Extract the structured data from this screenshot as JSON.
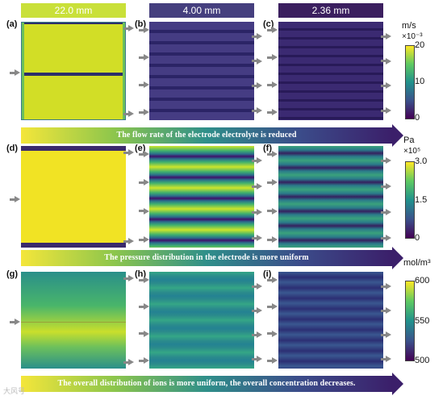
{
  "columns": [
    {
      "label": "22.0 mm",
      "bg": "#c9e039"
    },
    {
      "label": "4.00 mm",
      "bg": "#453f7e"
    },
    {
      "label": "2.36 mm",
      "bg": "#3b1f5f"
    }
  ],
  "panels": [
    {
      "id": "a",
      "label": "(a)"
    },
    {
      "id": "b",
      "label": "(b)"
    },
    {
      "id": "c",
      "label": "(c)"
    },
    {
      "id": "d",
      "label": "(d)"
    },
    {
      "id": "e",
      "label": "(e)"
    },
    {
      "id": "f",
      "label": "(f)"
    },
    {
      "id": "g",
      "label": "(g)"
    },
    {
      "id": "h",
      "label": "(h)"
    },
    {
      "id": "i",
      "label": "(i)"
    }
  ],
  "conclusions": [
    "The flow rate of the electrode electrolyte is reduced",
    "The pressure distribution in the electrode is more uniform",
    "The overall distribution of ions is more uniform,  the overall concentration decreases."
  ],
  "colorbars": [
    {
      "unit": "m/s",
      "exponent": "×10⁻³",
      "ticks": [
        "20",
        "10",
        "0"
      ]
    },
    {
      "unit": "Pa",
      "exponent": "×10⁵",
      "ticks": [
        "3.0",
        "1.5",
        "0"
      ]
    },
    {
      "unit": "mol/m³",
      "exponent": "",
      "ticks": [
        "600",
        "550",
        "500"
      ]
    }
  ],
  "colors": {
    "viridis_low": "#440154",
    "viridis_mid": "#21918c",
    "viridis_high": "#fde725",
    "arrow": "#888888"
  },
  "watermark": "大风号"
}
